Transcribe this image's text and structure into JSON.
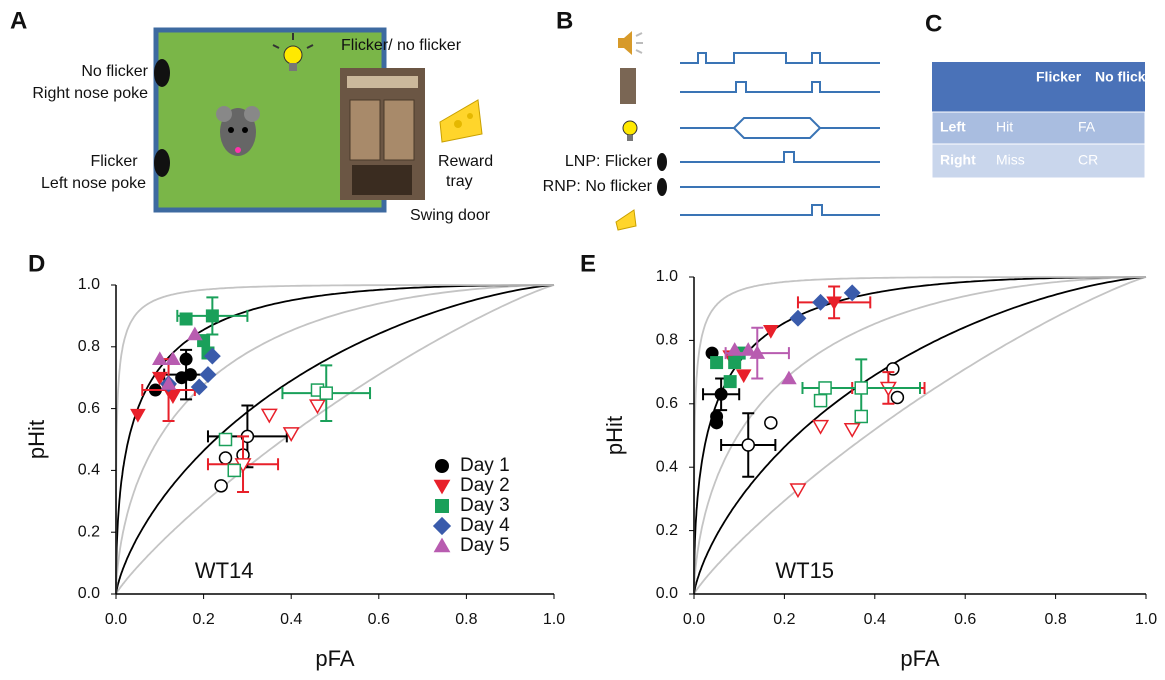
{
  "panel_labels": [
    "A",
    "B",
    "C",
    "D",
    "E"
  ],
  "panel_a": {
    "left_top": [
      "No flicker",
      "Right nose poke"
    ],
    "left_bottom": [
      "Flicker",
      "Left nose poke"
    ],
    "light": "Flicker/ no flicker",
    "reward": [
      "Reward",
      "tray"
    ],
    "door": "Swing door"
  },
  "panel_b": {
    "rows": [
      "LNP: Flicker",
      "RNP: No flicker"
    ]
  },
  "table": {
    "header": [
      "Flicker",
      "No flicker"
    ],
    "rows": [
      [
        "Left",
        "Hit",
        "FA"
      ],
      [
        "Right",
        "Miss",
        "CR"
      ]
    ]
  },
  "chart_data": [
    {
      "type": "scatter",
      "annotation": "WT14",
      "x_label": "pFA",
      "y_label": "pHit",
      "xlim": [
        0,
        1
      ],
      "ylim": [
        0,
        1
      ],
      "xticks": [
        {
          "value": 0,
          "label": "0.0"
        },
        0.2,
        0.4,
        0.6,
        0.8,
        {
          "value": 1,
          "label": "1.0"
        }
      ],
      "yticks": [
        {
          "value": 0,
          "label": "0.0"
        },
        0.2,
        0.4,
        0.6,
        0.8,
        {
          "value": 1,
          "label": "1.0"
        }
      ],
      "legend": "lower right",
      "series": [
        {
          "name": "Day 1",
          "color": "#000000",
          "marker": "circle",
          "x": [
            0.09,
            0.15,
            0.16,
            0.17
          ],
          "values": [
            0.66,
            0.7,
            0.76,
            0.71
          ],
          "open_x": [
            0.25,
            0.24,
            0.29,
            0.3
          ],
          "open_values": [
            0.44,
            0.35,
            0.45,
            0.51
          ],
          "errors": [
            {
              "x": 0.16,
              "y": 0.71,
              "xerr": 0.05,
              "yerr": 0.08,
              "filled": true
            },
            {
              "x": 0.3,
              "y": 0.51,
              "xerr": 0.09,
              "yerr": 0.1,
              "filled": false
            }
          ]
        },
        {
          "name": "Day 2",
          "color": "#e8202a",
          "marker": "triangle-down",
          "x": [
            0.05,
            0.1,
            0.13,
            0.12
          ],
          "values": [
            0.58,
            0.7,
            0.64,
            0.66
          ],
          "open_x": [
            0.35,
            0.4,
            0.46,
            0.29
          ],
          "open_values": [
            0.58,
            0.52,
            0.61,
            0.42
          ],
          "errors": [
            {
              "x": 0.12,
              "y": 0.66,
              "xerr": 0.06,
              "yerr": 0.1,
              "filled": true
            },
            {
              "x": 0.29,
              "y": 0.42,
              "xerr": 0.08,
              "yerr": 0.09,
              "filled": false
            }
          ]
        },
        {
          "name": "Day 3",
          "color": "#1aa05a",
          "marker": "square",
          "x": [
            0.16,
            0.22,
            0.2,
            0.21
          ],
          "values": [
            0.89,
            0.9,
            0.82,
            0.78
          ],
          "open_x": [
            0.25,
            0.27,
            0.46,
            0.48
          ],
          "open_values": [
            0.5,
            0.4,
            0.66,
            0.65
          ],
          "errors": [
            {
              "x": 0.22,
              "y": 0.9,
              "xerr": 0.08,
              "yerr": 0.06,
              "filled": true
            },
            {
              "x": 0.48,
              "y": 0.65,
              "xerr": 0.1,
              "yerr": 0.09,
              "filled": false
            }
          ]
        },
        {
          "name": "Day 4",
          "color": "#3a5bab",
          "marker": "diamond",
          "x": [
            0.12,
            0.19,
            0.21,
            0.22
          ],
          "values": [
            0.68,
            0.67,
            0.71,
            0.77
          ]
        },
        {
          "name": "Day 5",
          "color": "#b85cb0",
          "marker": "triangle-up",
          "x": [
            0.1,
            0.13,
            0.12,
            0.18
          ],
          "values": [
            0.76,
            0.76,
            0.68,
            0.84
          ]
        }
      ]
    },
    {
      "type": "scatter",
      "annotation": "WT15",
      "x_label": "pFA",
      "y_label": "pHit",
      "xlim": [
        0,
        1
      ],
      "ylim": [
        0,
        1
      ],
      "xticks": [
        {
          "value": 0,
          "label": "0.0"
        },
        0.2,
        0.4,
        0.6,
        0.8,
        {
          "value": 1,
          "label": "1.0"
        }
      ],
      "yticks": [
        {
          "value": 0,
          "label": "0.0"
        },
        0.2,
        0.4,
        0.6,
        0.8,
        {
          "value": 1,
          "label": "1.0"
        }
      ],
      "legend": false,
      "series": [
        {
          "name": "Day 1",
          "color": "#000000",
          "marker": "circle",
          "x": [
            0.04,
            0.05,
            0.05,
            0.06
          ],
          "values": [
            0.76,
            0.54,
            0.56,
            0.63
          ],
          "open_x": [
            0.17,
            0.44,
            0.45,
            0.12
          ],
          "open_values": [
            0.54,
            0.71,
            0.62,
            0.47
          ],
          "errors": [
            {
              "x": 0.06,
              "y": 0.63,
              "xerr": 0.04,
              "yerr": 0.05,
              "filled": true
            },
            {
              "x": 0.12,
              "y": 0.47,
              "xerr": 0.06,
              "yerr": 0.1,
              "filled": false
            }
          ]
        },
        {
          "name": "Day 2",
          "color": "#e8202a",
          "marker": "triangle-down",
          "x": [
            0.08,
            0.11,
            0.17,
            0.31
          ],
          "values": [
            0.75,
            0.69,
            0.83,
            0.92
          ],
          "open_x": [
            0.23,
            0.28,
            0.35,
            0.43
          ],
          "open_values": [
            0.33,
            0.53,
            0.52,
            0.65
          ],
          "errors": [
            {
              "x": 0.31,
              "y": 0.92,
              "xerr": 0.08,
              "yerr": 0.05,
              "filled": true
            },
            {
              "x": 0.43,
              "y": 0.65,
              "xerr": 0.08,
              "yerr": 0.05,
              "filled": false
            }
          ]
        },
        {
          "name": "Day 3",
          "color": "#1aa05a",
          "marker": "square",
          "x": [
            0.05,
            0.08,
            0.1,
            0.09
          ],
          "values": [
            0.73,
            0.67,
            0.76,
            0.73
          ],
          "open_x": [
            0.29,
            0.28,
            0.37,
            0.37
          ],
          "open_values": [
            0.65,
            0.61,
            0.56,
            0.65
          ],
          "errors": [
            {
              "x": 0.37,
              "y": 0.65,
              "xerr": 0.13,
              "yerr": 0.09,
              "filled": false
            }
          ]
        },
        {
          "name": "Day 4",
          "color": "#3a5bab",
          "marker": "diamond",
          "x": [
            0.23,
            0.28,
            0.35
          ],
          "values": [
            0.87,
            0.92,
            0.95
          ]
        },
        {
          "name": "Day 5",
          "color": "#b85cb0",
          "marker": "triangle-up",
          "x": [
            0.09,
            0.12,
            0.14,
            0.21
          ],
          "values": [
            0.77,
            0.77,
            0.76,
            0.68
          ],
          "errors": [
            {
              "x": 0.14,
              "y": 0.76,
              "xerr": 0.07,
              "yerr": 0.08,
              "filled": true
            }
          ]
        }
      ]
    }
  ]
}
